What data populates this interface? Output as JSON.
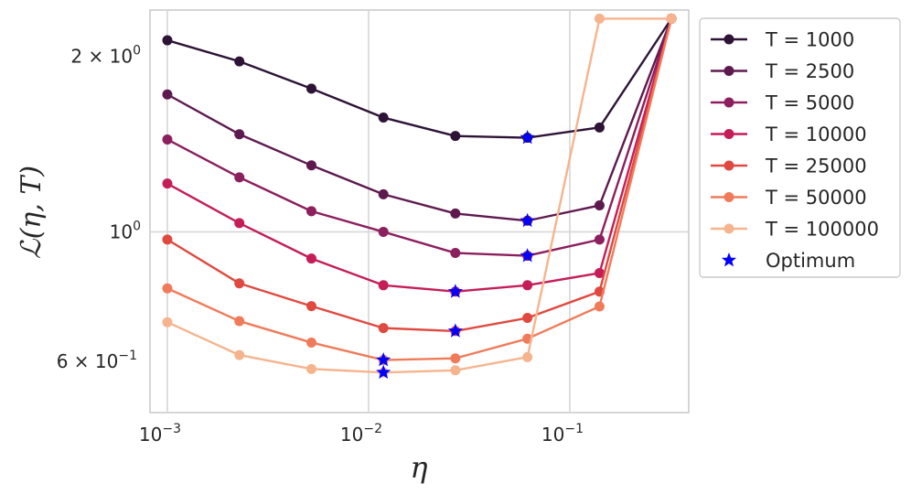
{
  "chart_data": {
    "type": "line",
    "x_scale": "log",
    "y_scale": "log",
    "xlabel": "η",
    "ylabel": "ℒ(η, T)",
    "x": [
      0.001,
      0.00228,
      0.0052,
      0.01185,
      0.027,
      0.0616,
      0.1405,
      0.32
    ],
    "xlim": [
      0.00082,
      0.39
    ],
    "ylim": [
      0.49,
      2.4
    ],
    "x_ticks": [
      {
        "value": 0.001,
        "base": "10",
        "exp": "−3"
      },
      {
        "value": 0.01,
        "base": "10",
        "exp": "−2"
      },
      {
        "value": 0.1,
        "base": "10",
        "exp": "−1"
      }
    ],
    "y_ticks": [
      {
        "value": 2.0,
        "mant": "2 × 10",
        "exp": "0"
      },
      {
        "value": 1.0,
        "mant": "10",
        "exp": "0"
      },
      {
        "value": 0.6,
        "mant": "6 × 10",
        "exp": "−1"
      }
    ],
    "grid": true,
    "legend_position": "outside-right",
    "series": [
      {
        "name": "T = 1000",
        "color": "#2d1436",
        "values": [
          2.13,
          1.96,
          1.76,
          1.57,
          1.46,
          1.45,
          1.51,
          2.32
        ]
      },
      {
        "name": "T = 2500",
        "color": "#5e1a4f",
        "values": [
          1.72,
          1.47,
          1.3,
          1.16,
          1.075,
          1.045,
          1.11,
          2.32
        ]
      },
      {
        "name": "T = 5000",
        "color": "#8c1f5d",
        "values": [
          1.44,
          1.24,
          1.085,
          1.0,
          0.92,
          0.91,
          0.97,
          2.32
        ]
      },
      {
        "name": "T = 10000",
        "color": "#c41d58",
        "values": [
          1.21,
          1.035,
          0.9,
          0.81,
          0.79,
          0.81,
          0.85,
          2.32
        ]
      },
      {
        "name": "T = 25000",
        "color": "#e0493f",
        "values": [
          0.97,
          0.816,
          0.746,
          0.684,
          0.676,
          0.712,
          0.79,
          2.32
        ]
      },
      {
        "name": "T = 50000",
        "color": "#f07b5a",
        "values": [
          0.8,
          0.703,
          0.646,
          0.603,
          0.607,
          0.656,
          0.745,
          2.32
        ]
      },
      {
        "name": "T = 100000",
        "color": "#f6b48e",
        "values": [
          0.7,
          0.615,
          0.582,
          0.574,
          0.579,
          0.61,
          2.32,
          2.32
        ]
      }
    ],
    "optimum": {
      "name": "Optimum",
      "color": "#0000ff",
      "points": [
        {
          "x": 0.0616,
          "y": 1.45
        },
        {
          "x": 0.0616,
          "y": 1.045
        },
        {
          "x": 0.0616,
          "y": 0.91
        },
        {
          "x": 0.027,
          "y": 0.79
        },
        {
          "x": 0.027,
          "y": 0.676
        },
        {
          "x": 0.01185,
          "y": 0.603
        },
        {
          "x": 0.01185,
          "y": 0.574
        }
      ]
    }
  }
}
